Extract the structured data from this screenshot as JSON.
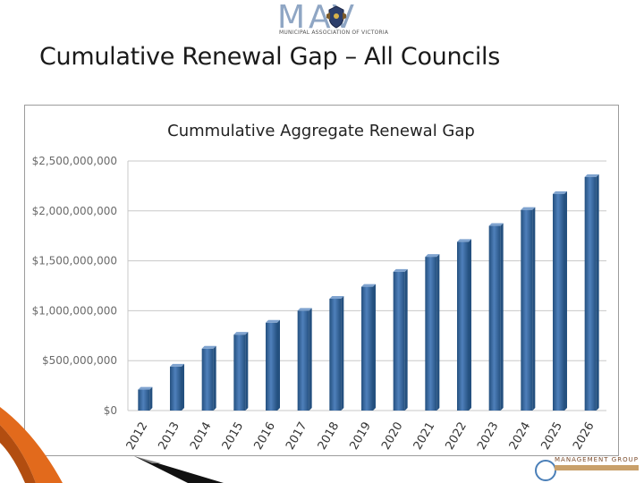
{
  "header": {
    "logo_letters": "MAV",
    "logo_subtitle": "MUNICIPAL ASSOCIATION OF VICTORIA",
    "slide_title": "Cumulative Renewal Gap – All Councils"
  },
  "footer": {
    "logo_text": "MANAGEMENT GROUP"
  },
  "colors": {
    "bar_fill": "#3f6fa8",
    "bar_dark": "#24507f",
    "bar_light": "#7fa3cf",
    "grid": "#c8c8c8",
    "axis_text": "#6b6b6b",
    "deco_orange": "#e26a1c",
    "deco_black": "#111111"
  },
  "chart_data": {
    "type": "bar",
    "title": "Cummulative Aggregate Renewal Gap",
    "xlabel": "",
    "ylabel": "",
    "categories": [
      "2012",
      "2013",
      "2014",
      "2015",
      "2016",
      "2017",
      "2018",
      "2019",
      "2020",
      "2021",
      "2022",
      "2023",
      "2024",
      "2025",
      "2026"
    ],
    "values": [
      210000000,
      440000000,
      620000000,
      760000000,
      880000000,
      1000000000,
      1120000000,
      1240000000,
      1390000000,
      1540000000,
      1690000000,
      1850000000,
      2010000000,
      2170000000,
      2340000000
    ],
    "ylim": [
      0,
      2500000000
    ],
    "yticks": [
      0,
      500000000,
      1000000000,
      1500000000,
      2000000000,
      2500000000
    ],
    "ytick_labels": [
      "$0",
      "$500,000,000",
      "$1,000,000,000",
      "$1,500,000,000",
      "$2,000,000,000",
      "$2,500,000,000"
    ],
    "grid": true,
    "legend": "none"
  }
}
